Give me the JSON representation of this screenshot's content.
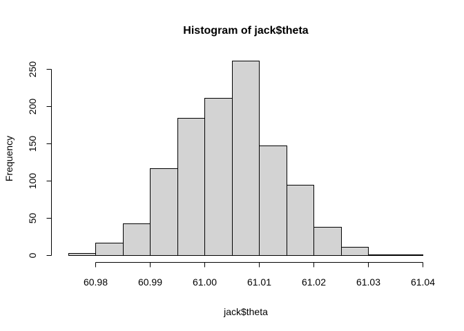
{
  "chart_data": {
    "type": "bar",
    "title": "Histogram of jack$theta",
    "xlabel": "jack$theta",
    "ylabel": "Frequency",
    "bin_width": 0.005,
    "bins": [
      {
        "x0": 60.975,
        "x1": 60.98,
        "count": 3
      },
      {
        "x0": 60.98,
        "x1": 60.985,
        "count": 17
      },
      {
        "x0": 60.985,
        "x1": 60.99,
        "count": 43
      },
      {
        "x0": 60.99,
        "x1": 60.995,
        "count": 117
      },
      {
        "x0": 60.995,
        "x1": 61.0,
        "count": 184
      },
      {
        "x0": 61.0,
        "x1": 61.005,
        "count": 211
      },
      {
        "x0": 61.005,
        "x1": 61.01,
        "count": 261
      },
      {
        "x0": 61.01,
        "x1": 61.015,
        "count": 147
      },
      {
        "x0": 61.015,
        "x1": 61.02,
        "count": 94
      },
      {
        "x0": 61.02,
        "x1": 61.025,
        "count": 38
      },
      {
        "x0": 61.025,
        "x1": 61.03,
        "count": 11
      },
      {
        "x0": 61.03,
        "x1": 61.035,
        "count": 1
      },
      {
        "x0": 61.035,
        "x1": 61.04,
        "count": 1
      }
    ],
    "xlim": [
      60.975,
      61.04
    ],
    "ylim": [
      0,
      261
    ],
    "xticks": [
      60.98,
      60.99,
      61.0,
      61.01,
      61.02,
      61.03,
      61.04
    ],
    "xtick_labels": [
      "60.98",
      "60.99",
      "61.00",
      "61.01",
      "61.02",
      "61.03",
      "61.04"
    ],
    "yticks": [
      0,
      50,
      100,
      150,
      200,
      250
    ],
    "ytick_labels": [
      "0",
      "50",
      "100",
      "150",
      "200",
      "250"
    ],
    "grid": false,
    "legend": "none",
    "colors": {
      "bar_fill": "#d3d3d3",
      "bar_stroke": "#000000",
      "axis": "#000000",
      "background": "#ffffff"
    }
  }
}
